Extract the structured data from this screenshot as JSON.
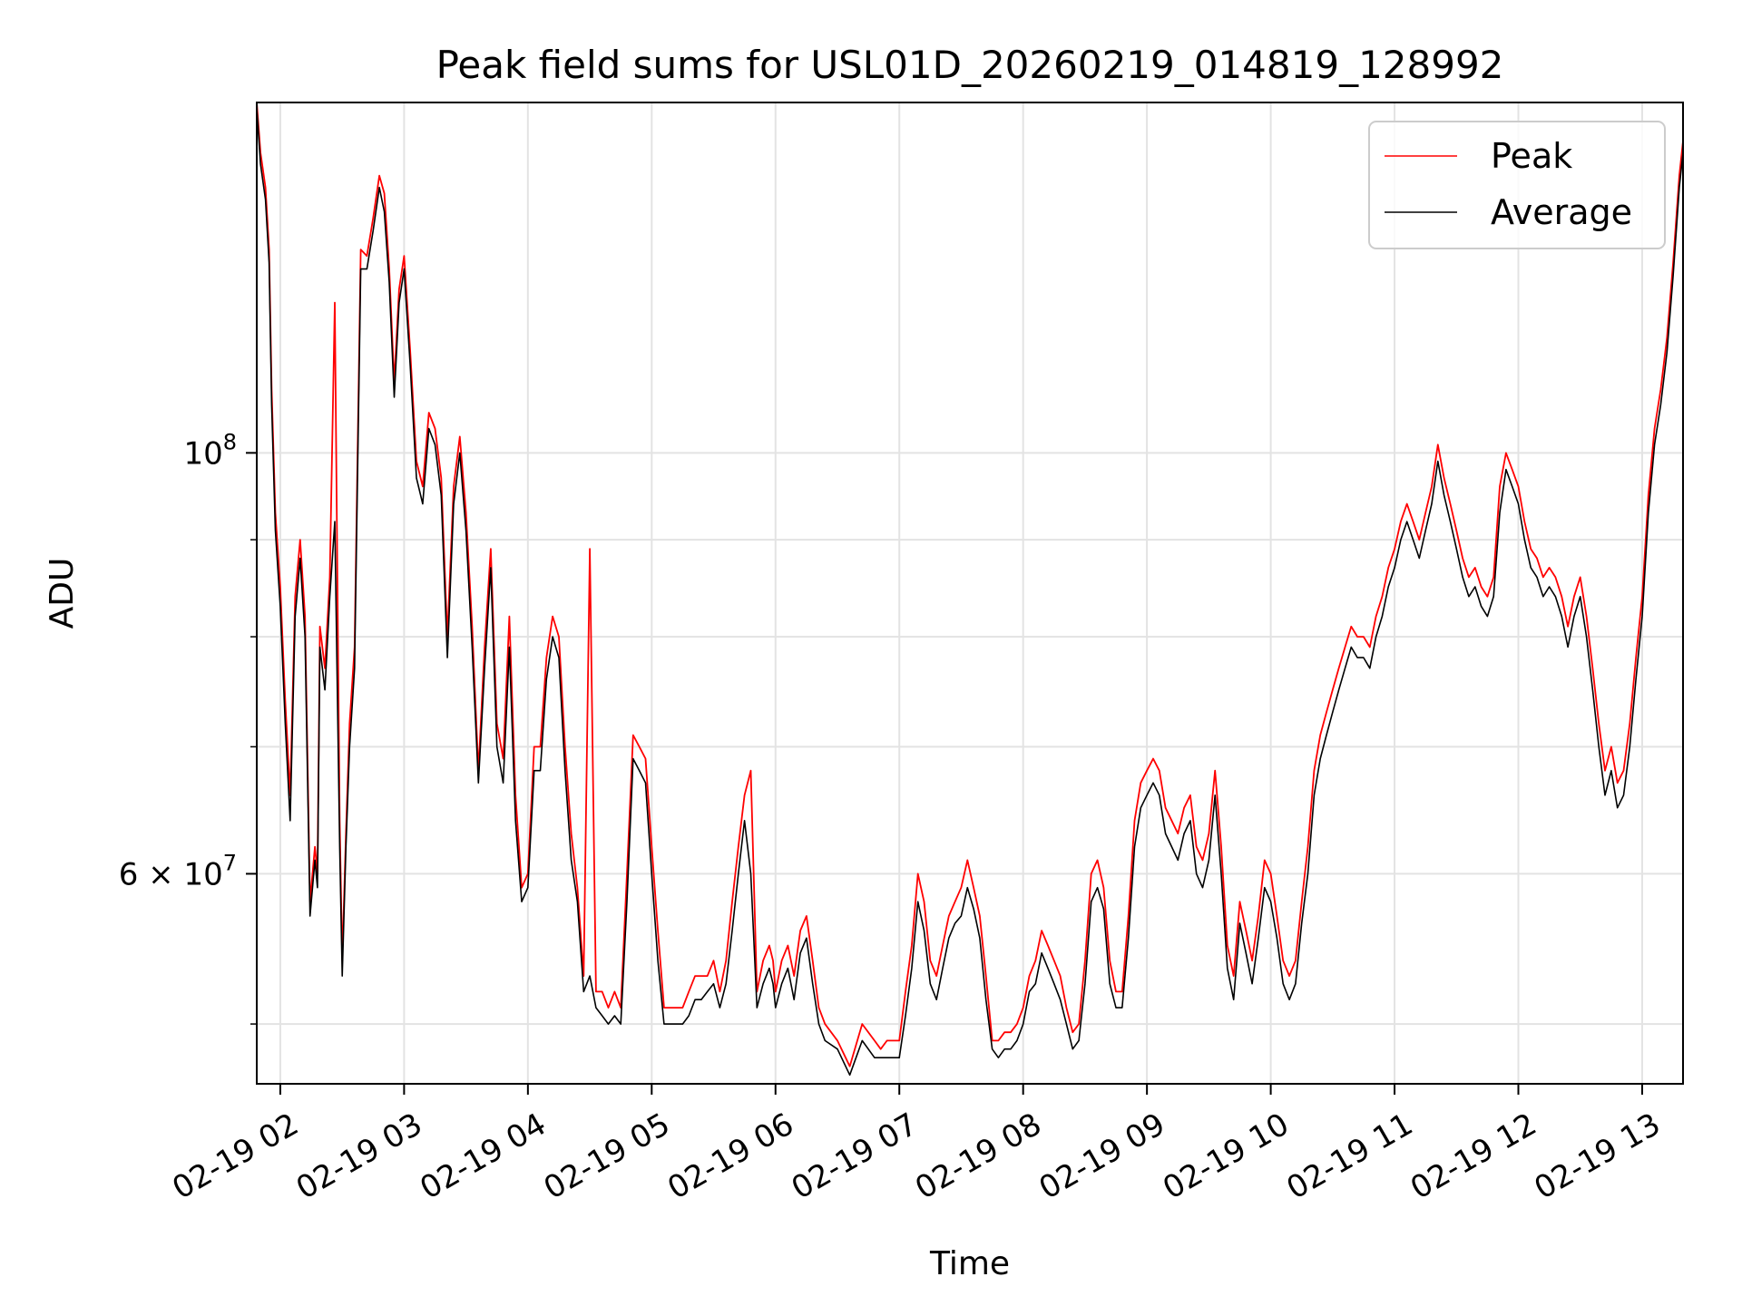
{
  "chart_data": {
    "type": "line",
    "title": "Peak field sums for USL01D_20260219_014819_128992",
    "xlabel": "Time",
    "ylabel": "ADU",
    "yscale": "log",
    "ylim": [
      46500000,
      153000000
    ],
    "xlim_hours": [
      1.81,
      13.33
    ],
    "grid": true,
    "legend_position": "upper right",
    "x_ticks": [
      {
        "hour": 2,
        "label": "02-19 02"
      },
      {
        "hour": 3,
        "label": "02-19 03"
      },
      {
        "hour": 4,
        "label": "02-19 04"
      },
      {
        "hour": 5,
        "label": "02-19 05"
      },
      {
        "hour": 6,
        "label": "02-19 06"
      },
      {
        "hour": 7,
        "label": "02-19 07"
      },
      {
        "hour": 8,
        "label": "02-19 08"
      },
      {
        "hour": 9,
        "label": "02-19 09"
      },
      {
        "hour": 10,
        "label": "02-19 10"
      },
      {
        "hour": 11,
        "label": "02-19 11"
      },
      {
        "hour": 12,
        "label": "02-19 12"
      },
      {
        "hour": 13,
        "label": "02-19 13"
      }
    ],
    "y_major_ticks": [
      {
        "value": 100000000,
        "base": "10",
        "exp": "8"
      },
      {
        "value": 60000000,
        "base": "6 × 10",
        "exp": "7"
      }
    ],
    "y_minor_ticks": [
      50000000,
      70000000,
      80000000,
      90000000
    ],
    "series": [
      {
        "name": "Peak",
        "color": "#ff0000",
        "x": [
          1.81,
          1.84,
          1.88,
          1.91,
          1.93,
          1.96,
          2.0,
          2.04,
          2.08,
          2.12,
          2.16,
          2.2,
          2.24,
          2.28,
          2.3,
          2.32,
          2.36,
          2.4,
          2.44,
          2.48,
          2.5,
          2.53,
          2.56,
          2.6,
          2.65,
          2.7,
          2.75,
          2.8,
          2.84,
          2.88,
          2.92,
          2.96,
          3.0,
          3.05,
          3.1,
          3.15,
          3.2,
          3.25,
          3.3,
          3.35,
          3.4,
          3.45,
          3.5,
          3.55,
          3.6,
          3.65,
          3.7,
          3.75,
          3.8,
          3.85,
          3.9,
          3.95,
          4.0,
          4.05,
          4.1,
          4.15,
          4.2,
          4.25,
          4.3,
          4.35,
          4.4,
          4.45,
          4.5,
          4.55,
          4.6,
          4.65,
          4.7,
          4.75,
          4.8,
          4.85,
          4.9,
          4.95,
          5.0,
          5.05,
          5.1,
          5.15,
          5.2,
          5.25,
          5.3,
          5.35,
          5.4,
          5.45,
          5.5,
          5.55,
          5.6,
          5.65,
          5.7,
          5.75,
          5.8,
          5.85,
          5.9,
          5.95,
          5.98,
          6.0,
          6.05,
          6.1,
          6.15,
          6.2,
          6.25,
          6.3,
          6.35,
          6.4,
          6.5,
          6.6,
          6.7,
          6.8,
          6.85,
          6.9,
          6.95,
          7.0,
          7.05,
          7.1,
          7.15,
          7.2,
          7.25,
          7.3,
          7.35,
          7.4,
          7.45,
          7.5,
          7.55,
          7.6,
          7.65,
          7.7,
          7.75,
          7.8,
          7.85,
          7.9,
          7.95,
          8.0,
          8.05,
          8.1,
          8.15,
          8.2,
          8.25,
          8.3,
          8.35,
          8.4,
          8.45,
          8.5,
          8.55,
          8.6,
          8.65,
          8.7,
          8.75,
          8.8,
          8.85,
          8.9,
          8.95,
          9.0,
          9.05,
          9.1,
          9.15,
          9.2,
          9.25,
          9.3,
          9.35,
          9.4,
          9.45,
          9.5,
          9.55,
          9.6,
          9.65,
          9.7,
          9.75,
          9.8,
          9.85,
          9.9,
          9.95,
          10.0,
          10.05,
          10.1,
          10.15,
          10.2,
          10.25,
          10.3,
          10.35,
          10.4,
          10.45,
          10.5,
          10.55,
          10.6,
          10.65,
          10.7,
          10.75,
          10.8,
          10.85,
          10.9,
          10.95,
          11.0,
          11.05,
          11.1,
          11.15,
          11.2,
          11.25,
          11.3,
          11.35,
          11.4,
          11.45,
          11.5,
          11.55,
          11.6,
          11.65,
          11.7,
          11.75,
          11.8,
          11.85,
          11.9,
          11.95,
          12.0,
          12.05,
          12.1,
          12.15,
          12.2,
          12.25,
          12.3,
          12.35,
          12.4,
          12.45,
          12.5,
          12.55,
          12.6,
          12.65,
          12.7,
          12.75,
          12.8,
          12.85,
          12.9,
          12.95,
          13.0,
          13.05,
          13.1,
          13.15,
          13.2,
          13.25,
          13.3,
          13.33
        ],
        "y": [
          153000000,
          144000000,
          138000000,
          128000000,
          108000000,
          93000000,
          85000000,
          74000000,
          66000000,
          84000000,
          90000000,
          82000000,
          58000000,
          62000000,
          60000000,
          81000000,
          77000000,
          86000000,
          120000000,
          64000000,
          54000000,
          63000000,
          72000000,
          79000000,
          128000000,
          127000000,
          133000000,
          140000000,
          137000000,
          125000000,
          109000000,
          122000000,
          127000000,
          113000000,
          99000000,
          96000000,
          105000000,
          103000000,
          97000000,
          80000000,
          96000000,
          102000000,
          93000000,
          81000000,
          68000000,
          79000000,
          89000000,
          72000000,
          69000000,
          82000000,
          66000000,
          59000000,
          60000000,
          70000000,
          70000000,
          78000000,
          82000000,
          80000000,
          70000000,
          63000000,
          59000000,
          53000000,
          89000000,
          52000000,
          52000000,
          51000000,
          52000000,
          51000000,
          60000000,
          71000000,
          70000000,
          69000000,
          62000000,
          56000000,
          51000000,
          51000000,
          51000000,
          51000000,
          52000000,
          53000000,
          53000000,
          53000000,
          54000000,
          52000000,
          54000000,
          58000000,
          62000000,
          66000000,
          68000000,
          52000000,
          54000000,
          55000000,
          54000000,
          52000000,
          54000000,
          55000000,
          53000000,
          56000000,
          57000000,
          54000000,
          51000000,
          50000000,
          49000000,
          47500000,
          50000000,
          49000000,
          48500000,
          49000000,
          49000000,
          49000000,
          52000000,
          55000000,
          60000000,
          58000000,
          54000000,
          53000000,
          55000000,
          57000000,
          58000000,
          59000000,
          61000000,
          59000000,
          57000000,
          53000000,
          49000000,
          49000000,
          49500000,
          49500000,
          50000000,
          51000000,
          53000000,
          54000000,
          56000000,
          55000000,
          54000000,
          53000000,
          51000000,
          49500000,
          50000000,
          54000000,
          60000000,
          61000000,
          59000000,
          54000000,
          52000000,
          52000000,
          57000000,
          64000000,
          67000000,
          68000000,
          69000000,
          68000000,
          65000000,
          64000000,
          63000000,
          65000000,
          66000000,
          62000000,
          61000000,
          63000000,
          68000000,
          62000000,
          55000000,
          53000000,
          58000000,
          56000000,
          54000000,
          57000000,
          61000000,
          60000000,
          57000000,
          54000000,
          53000000,
          54000000,
          58000000,
          62000000,
          68000000,
          71000000,
          73000000,
          75000000,
          77000000,
          79000000,
          81000000,
          80000000,
          80000000,
          79000000,
          82000000,
          84000000,
          87000000,
          89000000,
          92000000,
          94000000,
          92000000,
          90000000,
          93000000,
          96000000,
          101000000,
          97000000,
          94000000,
          91000000,
          88000000,
          86000000,
          87000000,
          85000000,
          84000000,
          86000000,
          96000000,
          100000000,
          98000000,
          96000000,
          92000000,
          89000000,
          88000000,
          86000000,
          87000000,
          86000000,
          84000000,
          81000000,
          84000000,
          86000000,
          82000000,
          77000000,
          72000000,
          68000000,
          70000000,
          67000000,
          68000000,
          72000000,
          78000000,
          84000000,
          95000000,
          103000000,
          108000000,
          115000000,
          126000000,
          140000000,
          146000000
        ]
      },
      {
        "name": "Average",
        "color": "#000000",
        "x": [
          1.81,
          1.84,
          1.88,
          1.91,
          1.93,
          1.96,
          2.0,
          2.04,
          2.08,
          2.12,
          2.16,
          2.2,
          2.24,
          2.28,
          2.3,
          2.32,
          2.36,
          2.4,
          2.44,
          2.48,
          2.5,
          2.53,
          2.56,
          2.6,
          2.65,
          2.7,
          2.75,
          2.8,
          2.84,
          2.88,
          2.92,
          2.96,
          3.0,
          3.05,
          3.1,
          3.15,
          3.2,
          3.25,
          3.3,
          3.35,
          3.4,
          3.45,
          3.5,
          3.55,
          3.6,
          3.65,
          3.7,
          3.75,
          3.8,
          3.85,
          3.9,
          3.95,
          4.0,
          4.05,
          4.1,
          4.15,
          4.2,
          4.25,
          4.3,
          4.35,
          4.4,
          4.45,
          4.5,
          4.55,
          4.6,
          4.65,
          4.7,
          4.75,
          4.8,
          4.85,
          4.9,
          4.95,
          5.0,
          5.05,
          5.1,
          5.15,
          5.2,
          5.25,
          5.3,
          5.35,
          5.4,
          5.45,
          5.5,
          5.55,
          5.6,
          5.65,
          5.7,
          5.75,
          5.8,
          5.85,
          5.9,
          5.95,
          5.98,
          6.0,
          6.05,
          6.1,
          6.15,
          6.2,
          6.25,
          6.3,
          6.35,
          6.4,
          6.5,
          6.6,
          6.7,
          6.8,
          6.85,
          6.9,
          6.95,
          7.0,
          7.05,
          7.1,
          7.15,
          7.2,
          7.25,
          7.3,
          7.35,
          7.4,
          7.45,
          7.5,
          7.55,
          7.6,
          7.65,
          7.7,
          7.75,
          7.8,
          7.85,
          7.9,
          7.95,
          8.0,
          8.05,
          8.1,
          8.15,
          8.2,
          8.25,
          8.3,
          8.35,
          8.4,
          8.45,
          8.5,
          8.55,
          8.6,
          8.65,
          8.7,
          8.75,
          8.8,
          8.85,
          8.9,
          8.95,
          9.0,
          9.05,
          9.1,
          9.15,
          9.2,
          9.25,
          9.3,
          9.35,
          9.4,
          9.45,
          9.5,
          9.55,
          9.6,
          9.65,
          9.7,
          9.75,
          9.8,
          9.85,
          9.9,
          9.95,
          10.0,
          10.05,
          10.1,
          10.15,
          10.2,
          10.25,
          10.3,
          10.35,
          10.4,
          10.45,
          10.5,
          10.55,
          10.6,
          10.65,
          10.7,
          10.75,
          10.8,
          10.85,
          10.9,
          10.95,
          11.0,
          11.05,
          11.1,
          11.15,
          11.2,
          11.25,
          11.3,
          11.35,
          11.4,
          11.45,
          11.5,
          11.55,
          11.6,
          11.65,
          11.7,
          11.75,
          11.8,
          11.85,
          11.9,
          11.95,
          12.0,
          12.05,
          12.1,
          12.15,
          12.2,
          12.25,
          12.3,
          12.35,
          12.4,
          12.45,
          12.5,
          12.55,
          12.6,
          12.65,
          12.7,
          12.75,
          12.8,
          12.85,
          12.9,
          12.95,
          13.0,
          13.05,
          13.1,
          13.15,
          13.2,
          13.25,
          13.3,
          13.33
        ],
        "y": [
          152000000,
          142000000,
          136000000,
          126000000,
          106000000,
          91000000,
          83000000,
          72000000,
          64000000,
          82000000,
          88000000,
          80000000,
          57000000,
          61000000,
          59000000,
          79000000,
          75000000,
          84000000,
          92000000,
          62000000,
          53000000,
          62000000,
          70000000,
          77000000,
          125000000,
          125000000,
          131000000,
          138000000,
          134000000,
          123000000,
          107000000,
          120000000,
          125000000,
          111000000,
          97000000,
          94000000,
          103000000,
          101000000,
          95000000,
          78000000,
          94000000,
          100000000,
          91000000,
          79000000,
          67000000,
          77000000,
          87000000,
          70000000,
          67000000,
          79000000,
          64000000,
          58000000,
          59000000,
          68000000,
          68000000,
          76000000,
          80000000,
          78000000,
          68000000,
          61000000,
          58000000,
          52000000,
          53000000,
          51000000,
          50500000,
          50000000,
          50500000,
          50000000,
          58000000,
          69000000,
          68000000,
          67000000,
          60000000,
          54000000,
          50000000,
          50000000,
          50000000,
          50000000,
          50500000,
          51500000,
          51500000,
          52000000,
          52500000,
          51000000,
          52500000,
          56000000,
          60000000,
          64000000,
          60000000,
          51000000,
          52500000,
          53500000,
          52500000,
          51000000,
          52500000,
          53500000,
          51500000,
          54500000,
          55500000,
          52500000,
          50000000,
          49000000,
          48500000,
          47000000,
          49000000,
          48000000,
          48000000,
          48000000,
          48000000,
          48000000,
          50500000,
          53500000,
          58000000,
          56000000,
          52500000,
          51500000,
          53500000,
          55500000,
          56500000,
          57000000,
          59000000,
          57500000,
          55500000,
          51500000,
          48500000,
          48000000,
          48500000,
          48500000,
          49000000,
          50000000,
          52000000,
          52500000,
          54500000,
          53500000,
          52500000,
          51500000,
          50000000,
          48500000,
          49000000,
          52500000,
          58000000,
          59000000,
          57500000,
          52500000,
          51000000,
          51000000,
          55500000,
          62000000,
          65000000,
          66000000,
          67000000,
          66000000,
          63000000,
          62000000,
          61000000,
          63000000,
          64000000,
          60000000,
          59000000,
          61000000,
          66000000,
          60000000,
          53500000,
          51500000,
          56500000,
          54500000,
          52500000,
          55500000,
          59000000,
          58000000,
          55500000,
          52500000,
          51500000,
          52500000,
          56500000,
          60000000,
          66000000,
          69000000,
          71000000,
          73000000,
          75000000,
          77000000,
          79000000,
          78000000,
          78000000,
          77000000,
          80000000,
          82000000,
          85000000,
          87000000,
          90000000,
          92000000,
          90000000,
          88000000,
          91000000,
          94000000,
          99000000,
          95000000,
          92000000,
          89000000,
          86000000,
          84000000,
          85000000,
          83000000,
          82000000,
          84000000,
          93000000,
          98000000,
          96000000,
          94000000,
          90000000,
          87000000,
          86000000,
          84000000,
          85000000,
          84000000,
          82000000,
          79000000,
          82000000,
          84000000,
          80000000,
          75000000,
          70000000,
          66000000,
          68000000,
          65000000,
          66000000,
          70000000,
          76000000,
          82000000,
          93000000,
          101000000,
          106000000,
          113000000,
          124000000,
          138000000,
          144000000
        ]
      }
    ]
  }
}
